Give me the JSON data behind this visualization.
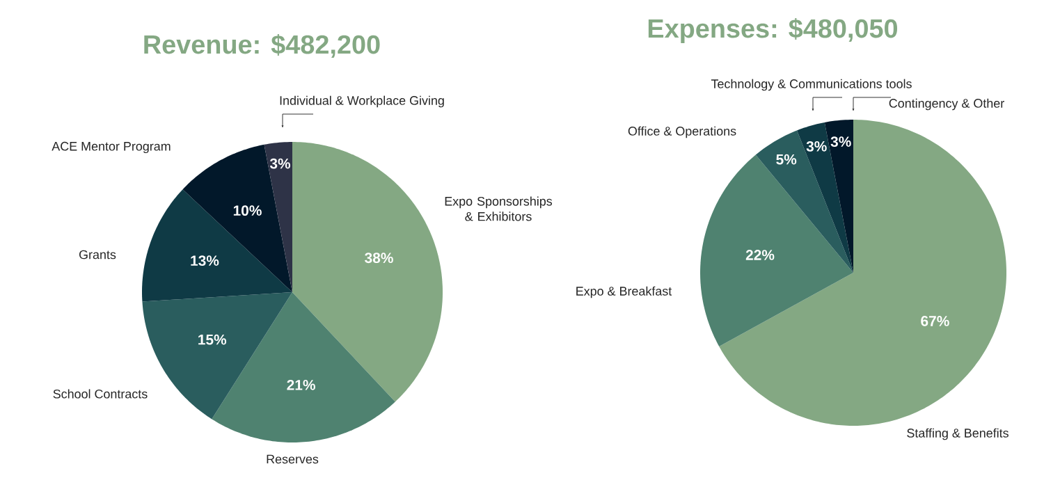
{
  "chart_data": [
    {
      "type": "pie",
      "title": "Revenue: $482,200",
      "categories": [
        "Expo Sponsorships & Exhibitors",
        "Reserves",
        "School Contracts",
        "Grants",
        "ACE Mentor Program",
        "Individual & Workplace Giving"
      ],
      "values": [
        38,
        21,
        15,
        13,
        10,
        3
      ],
      "value_labels": [
        "38%",
        "21%",
        "15%",
        "13%",
        "10%",
        "3%"
      ],
      "colors": [
        "#84a883",
        "#4f8270",
        "#2a5d5e",
        "#0f3a45",
        "#02182a",
        "#2e3347"
      ]
    },
    {
      "type": "pie",
      "title": "Expenses: $480,050",
      "categories": [
        "Staffing & Benefits",
        "Expo & Breakfast",
        "Office & Operations",
        "Technology & Communications tools",
        "Contingency & Other"
      ],
      "values": [
        67,
        22,
        5,
        3,
        3
      ],
      "value_labels": [
        "67%",
        "22%",
        "5%",
        "3%",
        "3%"
      ],
      "colors": [
        "#84a883",
        "#4f8270",
        "#2a5d5e",
        "#0f3a45",
        "#02182a"
      ]
    }
  ]
}
